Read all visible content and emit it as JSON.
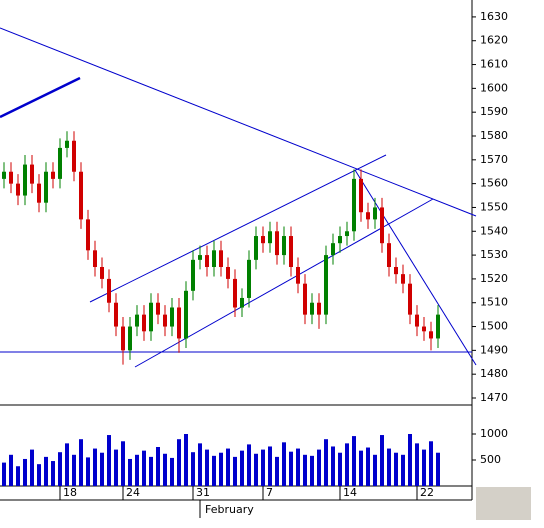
{
  "chart_data": {
    "type": "candlestick",
    "categories": [
      null,
      null,
      null,
      null,
      null,
      null,
      null,
      null,
      "18",
      null,
      null,
      null,
      null,
      null,
      null,
      null,
      null,
      "24",
      null,
      null,
      null,
      null,
      null,
      null,
      null,
      null,
      null,
      "31",
      null,
      null,
      null,
      null,
      null,
      null,
      null,
      null,
      null,
      "7",
      null,
      null,
      null,
      null,
      null,
      null,
      null,
      null,
      null,
      null,
      "14",
      null,
      null,
      null,
      null,
      null,
      null,
      null,
      null,
      null,
      null,
      "22",
      null,
      null,
      null
    ],
    "month_label": "February",
    "open": [
      1562,
      1565,
      1560,
      1555,
      1568,
      1560,
      1552,
      1565,
      1562,
      1575,
      1578,
      1565,
      1545,
      1532,
      1525,
      1520,
      1510,
      1500,
      1490,
      1500,
      1505,
      1498,
      1510,
      1505,
      1500,
      1508,
      1495,
      1515,
      1528,
      1530,
      1525,
      1532,
      1525,
      1520,
      1508,
      1512,
      1528,
      1538,
      1535,
      1540,
      1530,
      1538,
      1525,
      1518,
      1505,
      1510,
      1505,
      1530,
      1535,
      1538,
      1540,
      1562,
      1548,
      1545,
      1550,
      1535,
      1525,
      1522,
      1518,
      1505,
      1500,
      1498,
      1495
    ],
    "high": [
      1569,
      1569,
      1564,
      1572,
      1572,
      1564,
      1569,
      1569,
      1579,
      1582,
      1582,
      1569,
      1549,
      1536,
      1529,
      1524,
      1514,
      1504,
      1504,
      1509,
      1509,
      1514,
      1514,
      1509,
      1512,
      1512,
      1519,
      1532,
      1534,
      1534,
      1536,
      1536,
      1529,
      1524,
      1516,
      1532,
      1542,
      1542,
      1544,
      1544,
      1542,
      1542,
      1529,
      1522,
      1514,
      1514,
      1534,
      1539,
      1542,
      1544,
      1566,
      1566,
      1552,
      1554,
      1554,
      1539,
      1529,
      1526,
      1522,
      1509,
      1504,
      1502,
      1509
    ],
    "low": [
      1558,
      1556,
      1551,
      1551,
      1556,
      1548,
      1548,
      1558,
      1558,
      1571,
      1561,
      1541,
      1528,
      1521,
      1516,
      1506,
      1496,
      1484,
      1486,
      1496,
      1494,
      1494,
      1501,
      1496,
      1496,
      1489,
      1491,
      1511,
      1524,
      1521,
      1521,
      1521,
      1516,
      1504,
      1504,
      1508,
      1524,
      1531,
      1531,
      1526,
      1526,
      1521,
      1514,
      1501,
      1501,
      1499,
      1501,
      1526,
      1531,
      1534,
      1536,
      1544,
      1541,
      1541,
      1531,
      1521,
      1518,
      1514,
      1501,
      1496,
      1494,
      1490,
      1491
    ],
    "close": [
      1565,
      1560,
      1555,
      1568,
      1560,
      1552,
      1565,
      1562,
      1575,
      1578,
      1565,
      1545,
      1532,
      1525,
      1520,
      1510,
      1500,
      1490,
      1500,
      1505,
      1498,
      1510,
      1505,
      1500,
      1508,
      1495,
      1515,
      1528,
      1530,
      1525,
      1532,
      1525,
      1520,
      1508,
      1512,
      1528,
      1538,
      1535,
      1540,
      1530,
      1538,
      1525,
      1518,
      1505,
      1510,
      1505,
      1530,
      1535,
      1538,
      1540,
      1562,
      1548,
      1545,
      1550,
      1535,
      1525,
      1522,
      1518,
      1505,
      1500,
      1498,
      1495,
      1505
    ],
    "up_color": "#008000",
    "down_color": "#d00000",
    "ylim": [
      1467.9,
      1637.1
    ],
    "yticks": [
      1470,
      1480,
      1490,
      1500,
      1510,
      1520,
      1530,
      1540,
      1550,
      1560,
      1570,
      1580,
      1590,
      1600,
      1610,
      1620,
      1630
    ],
    "volume": {
      "color": "#0000cc",
      "values": [
        450,
        600,
        380,
        520,
        700,
        420,
        560,
        480,
        650,
        820,
        600,
        900,
        550,
        720,
        640,
        980,
        700,
        860,
        520,
        600,
        680,
        560,
        750,
        620,
        540,
        900,
        1000,
        650,
        820,
        700,
        580,
        640,
        720,
        560,
        680,
        800,
        620,
        700,
        760,
        560,
        840,
        660,
        720,
        600,
        580,
        700,
        900,
        760,
        640,
        820,
        960,
        680,
        740,
        600,
        980,
        720,
        640,
        600,
        1000,
        820,
        700,
        860,
        640
      ],
      "ylim": [
        0,
        1500
      ],
      "yticks": [
        500,
        1000
      ]
    }
  }
}
